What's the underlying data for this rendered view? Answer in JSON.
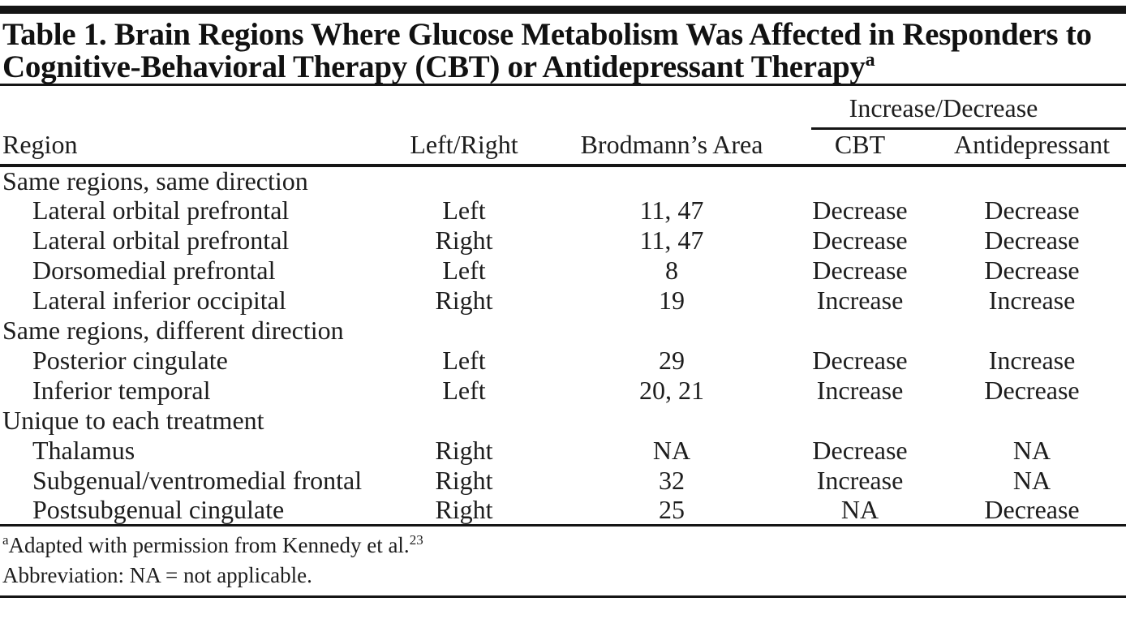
{
  "title": {
    "line1": "Table 1. Brain Regions Where Glucose Metabolism Was Affected in Responders to",
    "line2": "Cognitive-Behavioral Therapy (CBT) or Antidepressant Therapy",
    "superscript": "a"
  },
  "table": {
    "spanner": "Increase/Decrease",
    "headers": {
      "region": "Region",
      "left_right": "Left/Right",
      "brodmann": "Brodmann’s Area",
      "cbt": "CBT",
      "antidepressant": "Antidepressant"
    },
    "rows": [
      {
        "section": "Same regions, same direction"
      },
      {
        "region": "Lateral orbital prefrontal",
        "left_right": "Left",
        "brodmann": "11, 47",
        "cbt": "Decrease",
        "antidepressant": "Decrease"
      },
      {
        "region": "Lateral orbital prefrontal",
        "left_right": "Right",
        "brodmann": "11, 47",
        "cbt": "Decrease",
        "antidepressant": "Decrease"
      },
      {
        "region": "Dorsomedial prefrontal",
        "left_right": "Left",
        "brodmann": "8",
        "cbt": "Decrease",
        "antidepressant": "Decrease"
      },
      {
        "region": "Lateral inferior occipital",
        "left_right": "Right",
        "brodmann": "19",
        "cbt": "Increase",
        "antidepressant": "Increase"
      },
      {
        "section": "Same regions, different direction"
      },
      {
        "region": "Posterior cingulate",
        "left_right": "Left",
        "brodmann": "29",
        "cbt": "Decrease",
        "antidepressant": "Increase"
      },
      {
        "region": "Inferior temporal",
        "left_right": "Left",
        "brodmann": "20, 21",
        "cbt": "Increase",
        "antidepressant": "Decrease"
      },
      {
        "section": "Unique to each treatment"
      },
      {
        "region": "Thalamus",
        "left_right": "Right",
        "brodmann": "NA",
        "cbt": "Decrease",
        "antidepressant": "NA"
      },
      {
        "region": "Subgenual/ventromedial frontal",
        "left_right": "Right",
        "brodmann": "32",
        "cbt": "Increase",
        "antidepressant": "NA"
      },
      {
        "region": "Postsubgenual cingulate",
        "left_right": "Right",
        "brodmann": "25",
        "cbt": "NA",
        "antidepressant": "Decrease"
      }
    ]
  },
  "footnotes": {
    "source": {
      "marker": "a",
      "text": "Adapted with permission from Kennedy et al.",
      "reference": "23"
    },
    "abbreviation": {
      "text": "Abbreviation: NA = not applicable."
    }
  }
}
